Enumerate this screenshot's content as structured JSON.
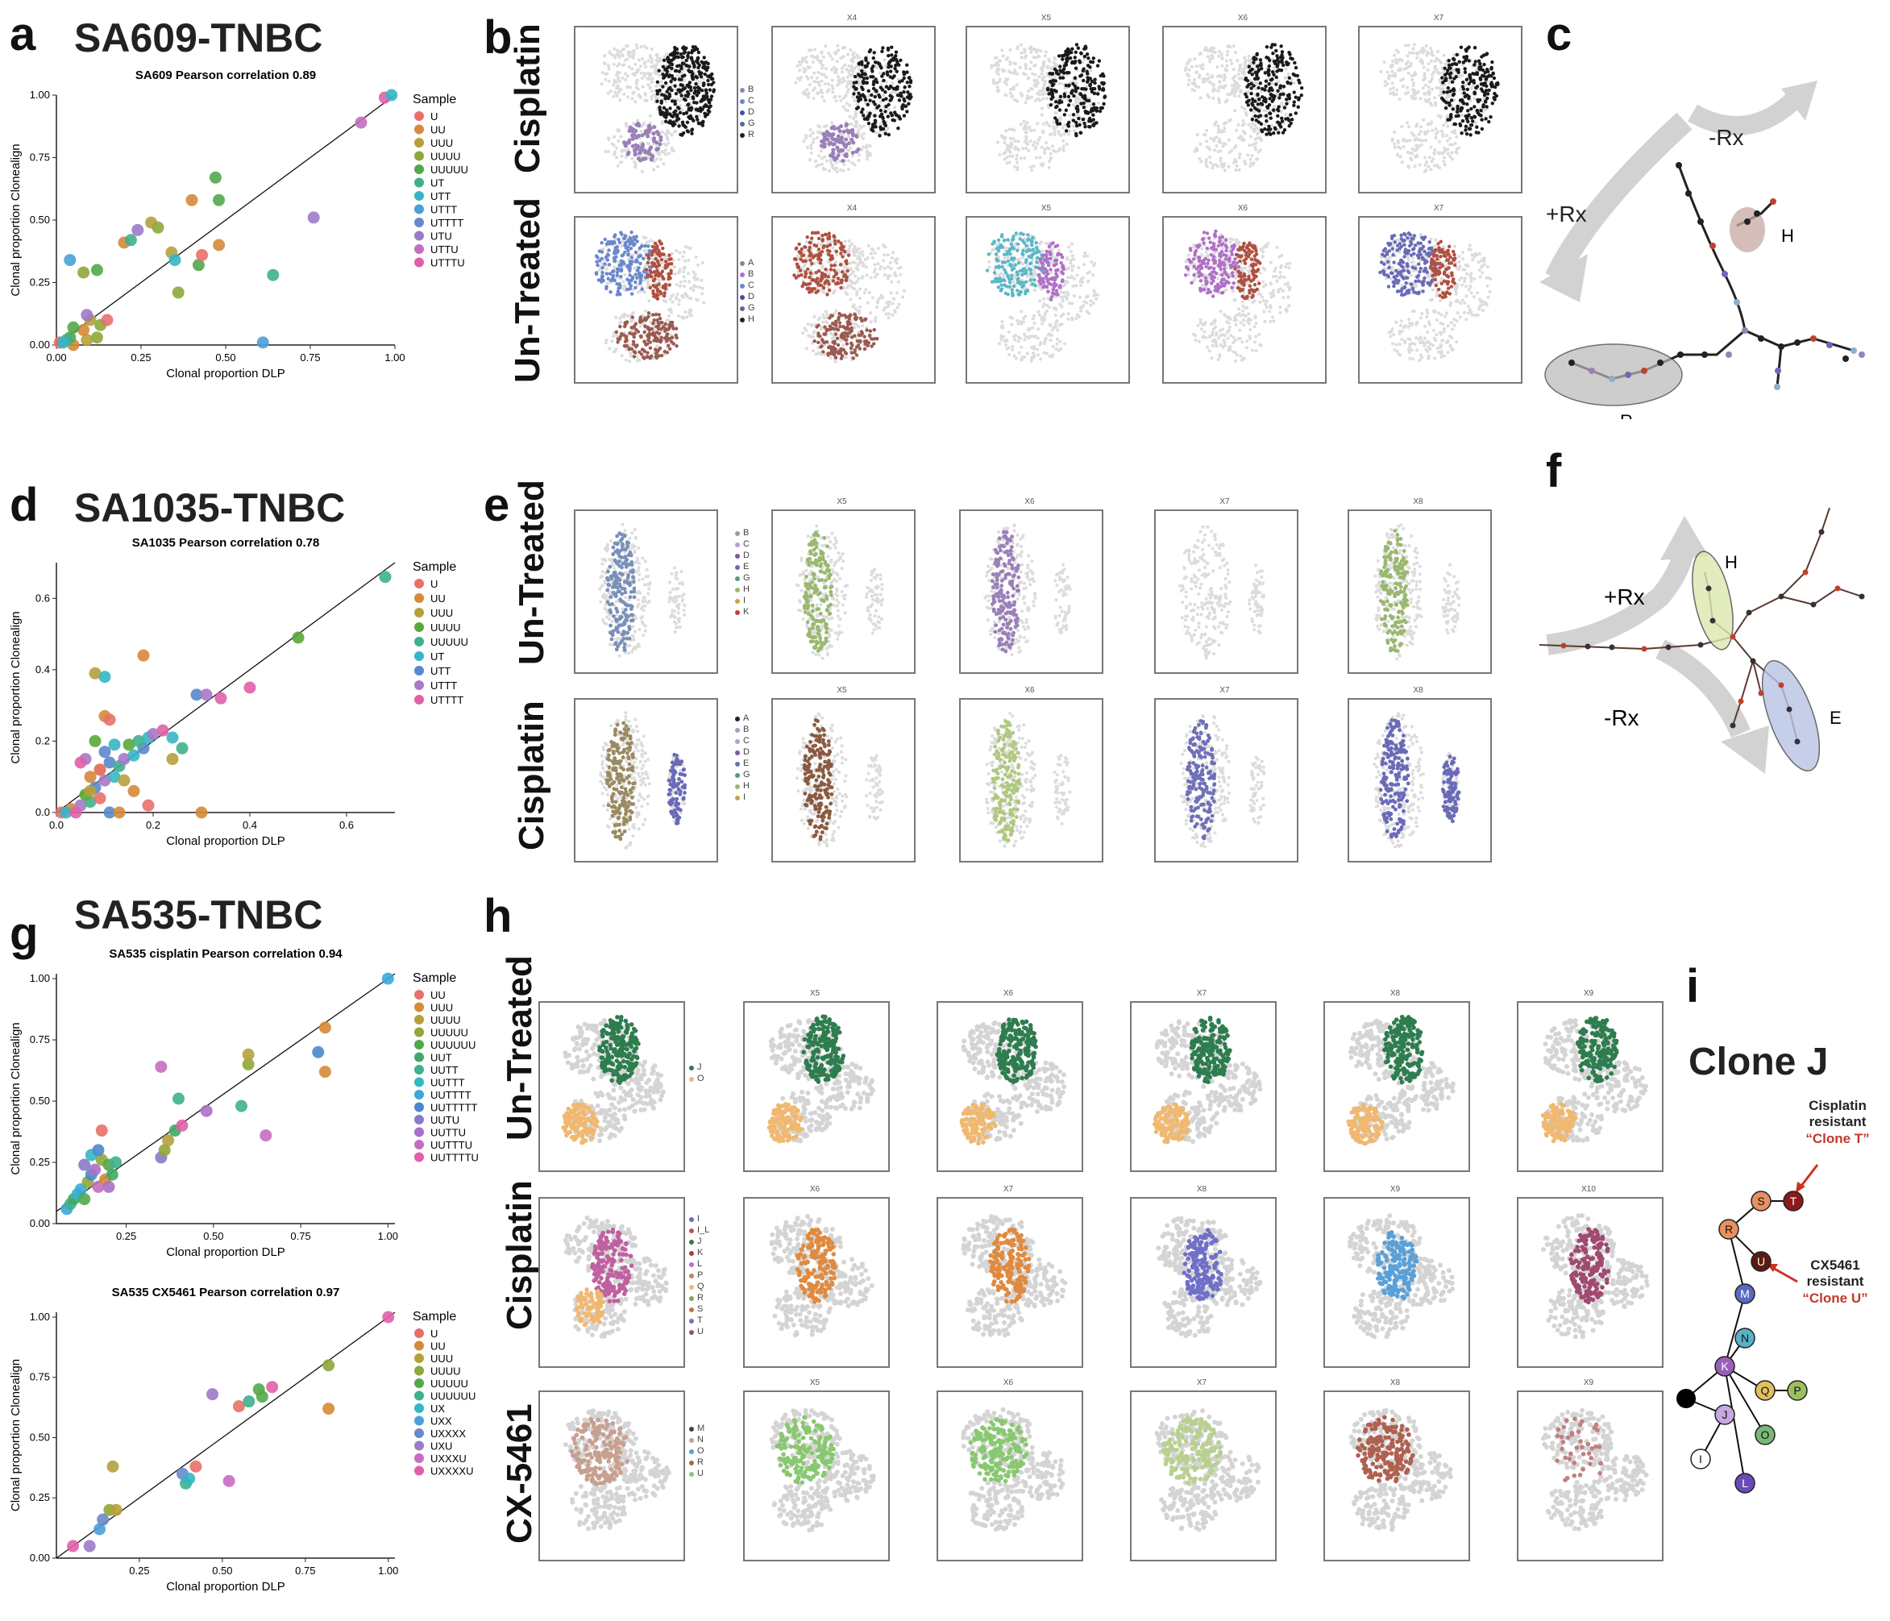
{
  "panels": {
    "a": {
      "letter": "a",
      "title": "SA609-TNBC",
      "chart_data": {
        "type": "scatter",
        "title": "SA609 Pearson correlation 0.89",
        "xlabel": "Clonal proportion DLP",
        "ylabel": "Clonal proportion Clonealign",
        "xlim": [
          0,
          1
        ],
        "ylim": [
          0,
          1
        ],
        "xticks": [
          "0.00",
          "0.25",
          "0.50",
          "0.75",
          "1.00"
        ],
        "yticks": [
          "0.00",
          "0.25",
          "0.50",
          "0.75",
          "1.00"
        ],
        "legend_title": "Sample",
        "legend": [
          "U",
          "UU",
          "UUU",
          "UUUU",
          "UUUUU",
          "UT",
          "UTT",
          "UTTT",
          "UTTTT",
          "UTU",
          "UTTU",
          "UTTTU"
        ],
        "colors": [
          "#e8706a",
          "#d68a3a",
          "#b6a03c",
          "#8ea83a",
          "#52a84a",
          "#3fb08c",
          "#35b6c4",
          "#4aa0d8",
          "#6a88cc",
          "#9d7ac8",
          "#c56dc2",
          "#e060a8"
        ],
        "points": [
          [
            0.01,
            0.01,
            0
          ],
          [
            0.05,
            0.0,
            1
          ],
          [
            0.09,
            0.02,
            2
          ],
          [
            0.12,
            0.03,
            3
          ],
          [
            0.04,
            0.03,
            4
          ],
          [
            0.03,
            0.02,
            5
          ],
          [
            0.02,
            0.01,
            6
          ],
          [
            0.08,
            0.06,
            1
          ],
          [
            0.1,
            0.1,
            2
          ],
          [
            0.13,
            0.08,
            3
          ],
          [
            0.05,
            0.07,
            4
          ],
          [
            0.15,
            0.1,
            0
          ],
          [
            0.09,
            0.12,
            9
          ],
          [
            0.04,
            0.34,
            7
          ],
          [
            0.08,
            0.29,
            3
          ],
          [
            0.12,
            0.3,
            4
          ],
          [
            0.2,
            0.41,
            1
          ],
          [
            0.24,
            0.46,
            9
          ],
          [
            0.28,
            0.49,
            2
          ],
          [
            0.3,
            0.47,
            3
          ],
          [
            0.22,
            0.42,
            5
          ],
          [
            0.34,
            0.37,
            2
          ],
          [
            0.35,
            0.34,
            6
          ],
          [
            0.36,
            0.21,
            3
          ],
          [
            0.42,
            0.32,
            4
          ],
          [
            0.43,
            0.36,
            0
          ],
          [
            0.48,
            0.4,
            1
          ],
          [
            0.4,
            0.58,
            1
          ],
          [
            0.48,
            0.58,
            4
          ],
          [
            0.47,
            0.67,
            4
          ],
          [
            0.64,
            0.28,
            5
          ],
          [
            0.61,
            0.01,
            7
          ],
          [
            0.76,
            0.51,
            9
          ],
          [
            0.9,
            0.89,
            10
          ],
          [
            0.97,
            0.99,
            11
          ],
          [
            0.99,
            1.0,
            6
          ]
        ]
      }
    },
    "b": {
      "letter": "b",
      "rows": [
        "Cisplatin",
        "Un-Treated"
      ],
      "cols": [
        "",
        "X4",
        "X5",
        "X6",
        "X7"
      ],
      "legend_cisplatin": [
        "B",
        "C",
        "D",
        "G",
        "R"
      ],
      "legend_untreated": [
        "A",
        "B",
        "C",
        "D",
        "G",
        "H"
      ]
    },
    "c": {
      "letter": "c",
      "plus_rx": "+Rx",
      "minus_rx": "-Rx",
      "label_h": "H",
      "label_r": "R"
    },
    "d": {
      "letter": "d",
      "title": "SA1035-TNBC",
      "chart_data": {
        "type": "scatter",
        "title": "SA1035 Pearson correlation 0.78",
        "xlabel": "Clonal proportion DLP",
        "ylabel": "Clonal proportion Clonealign",
        "xlim": [
          0,
          0.7
        ],
        "ylim": [
          0,
          0.7
        ],
        "xticks": [
          "0.0",
          "0.2",
          "0.4",
          "0.6"
        ],
        "yticks": [
          "0.0",
          "0.2",
          "0.4",
          "0.6"
        ],
        "legend_title": "Sample",
        "legend": [
          "U",
          "UU",
          "UUU",
          "UUUU",
          "UUUUU",
          "UT",
          "UTT",
          "UTTT",
          "UTTTT"
        ],
        "colors": [
          "#e8706a",
          "#d68a3a",
          "#b6a03c",
          "#5aa83a",
          "#3fb08c",
          "#35b6c4",
          "#5a88cc",
          "#a978c8",
          "#e060a8"
        ],
        "points": [
          [
            0.01,
            0.0,
            0
          ],
          [
            0.03,
            0.01,
            1
          ],
          [
            0.05,
            0.02,
            7
          ],
          [
            0.07,
            0.03,
            4
          ],
          [
            0.02,
            0.0,
            5
          ],
          [
            0.04,
            0.0,
            8
          ],
          [
            0.06,
            0.05,
            3
          ],
          [
            0.08,
            0.07,
            6
          ],
          [
            0.1,
            0.09,
            7
          ],
          [
            0.12,
            0.1,
            5
          ],
          [
            0.09,
            0.12,
            2
          ],
          [
            0.11,
            0.14,
            6
          ],
          [
            0.13,
            0.13,
            4
          ],
          [
            0.14,
            0.15,
            7
          ],
          [
            0.16,
            0.16,
            5
          ],
          [
            0.18,
            0.18,
            6
          ],
          [
            0.15,
            0.19,
            3
          ],
          [
            0.17,
            0.2,
            4
          ],
          [
            0.19,
            0.21,
            5
          ],
          [
            0.2,
            0.22,
            7
          ],
          [
            0.22,
            0.23,
            8
          ],
          [
            0.12,
            0.19,
            5
          ],
          [
            0.1,
            0.17,
            6
          ],
          [
            0.08,
            0.2,
            3
          ],
          [
            0.06,
            0.15,
            7
          ],
          [
            0.05,
            0.14,
            8
          ],
          [
            0.07,
            0.06,
            2
          ],
          [
            0.09,
            0.04,
            0
          ],
          [
            0.11,
            0.0,
            6
          ],
          [
            0.13,
            0.0,
            1
          ],
          [
            0.1,
            0.27,
            1
          ],
          [
            0.11,
            0.26,
            0
          ],
          [
            0.08,
            0.39,
            2
          ],
          [
            0.1,
            0.38,
            5
          ],
          [
            0.18,
            0.44,
            1
          ],
          [
            0.07,
            0.1,
            1
          ],
          [
            0.09,
            0.12,
            0
          ],
          [
            0.14,
            0.09,
            2
          ],
          [
            0.16,
            0.06,
            1
          ],
          [
            0.19,
            0.02,
            0
          ],
          [
            0.24,
            0.15,
            2
          ],
          [
            0.24,
            0.21,
            5
          ],
          [
            0.26,
            0.18,
            4
          ],
          [
            0.29,
            0.33,
            6
          ],
          [
            0.31,
            0.33,
            7
          ],
          [
            0.34,
            0.32,
            8
          ],
          [
            0.3,
            0.0,
            1
          ],
          [
            0.4,
            0.35,
            8
          ],
          [
            0.5,
            0.49,
            3
          ],
          [
            0.68,
            0.66,
            4
          ]
        ]
      }
    },
    "e": {
      "letter": "e",
      "rows": [
        "Un-Treated",
        "Cisplatin"
      ],
      "cols": [
        "",
        "X5",
        "X6",
        "X7",
        "X8"
      ],
      "legend_untreated": [
        "B",
        "C",
        "D",
        "E",
        "G",
        "H",
        "I",
        "K"
      ],
      "legend_cisplatin": [
        "A",
        "B",
        "C",
        "D",
        "E",
        "G",
        "H",
        "I"
      ]
    },
    "f": {
      "letter": "f",
      "plus_rx": "+Rx",
      "minus_rx": "-Rx",
      "label_h": "H",
      "label_e": "E"
    },
    "g": {
      "letter": "g",
      "title": "SA535-TNBC",
      "chart_top": {
        "type": "scatter",
        "title": "SA535 cisplatin Pearson correlation 0.94",
        "xlabel": "Clonal proportion DLP",
        "ylabel": "Clonal proportion Clonealign",
        "xlim": [
          0.05,
          1.02
        ],
        "ylim": [
          0,
          1.02
        ],
        "xticks": [
          "0.25",
          "0.50",
          "0.75",
          "1.00"
        ],
        "yticks": [
          "0.00",
          "0.25",
          "0.50",
          "0.75",
          "1.00"
        ],
        "legend_title": "Sample",
        "legend": [
          "UU",
          "UUU",
          "UUUU",
          "UUUUU",
          "UUUUUU",
          "UUT",
          "UUTT",
          "UUTTT",
          "UUTTTT",
          "UUTTTTT",
          "UUTU",
          "UUTTU",
          "UUTTTU",
          "UUTTTTU"
        ],
        "colors": [
          "#e8706a",
          "#d68a3a",
          "#b6a03c",
          "#8ea83a",
          "#52a84a",
          "#3fa866",
          "#3fb08c",
          "#35b6c4",
          "#3aa8dc",
          "#4a88cc",
          "#8a7ac8",
          "#a970c8",
          "#c56dc2",
          "#e060a8"
        ],
        "points": [
          [
            0.08,
            0.06,
            8
          ],
          [
            0.09,
            0.08,
            6
          ],
          [
            0.1,
            0.1,
            5
          ],
          [
            0.11,
            0.12,
            7
          ],
          [
            0.12,
            0.14,
            8
          ],
          [
            0.13,
            0.1,
            4
          ],
          [
            0.14,
            0.17,
            3
          ],
          [
            0.15,
            0.2,
            9
          ],
          [
            0.16,
            0.22,
            11
          ],
          [
            0.17,
            0.15,
            12
          ],
          [
            0.18,
            0.26,
            3
          ],
          [
            0.19,
            0.18,
            1
          ],
          [
            0.2,
            0.24,
            4
          ],
          [
            0.21,
            0.2,
            5
          ],
          [
            0.22,
            0.25,
            6
          ],
          [
            0.15,
            0.28,
            7
          ],
          [
            0.17,
            0.3,
            9
          ],
          [
            0.18,
            0.38,
            0
          ],
          [
            0.13,
            0.24,
            10
          ],
          [
            0.2,
            0.15,
            11
          ],
          [
            0.35,
            0.27,
            10
          ],
          [
            0.36,
            0.3,
            3
          ],
          [
            0.37,
            0.34,
            2
          ],
          [
            0.39,
            0.38,
            5
          ],
          [
            0.41,
            0.4,
            13
          ],
          [
            0.4,
            0.51,
            6
          ],
          [
            0.35,
            0.64,
            12
          ],
          [
            0.48,
            0.46,
            11
          ],
          [
            0.58,
            0.48,
            6
          ],
          [
            0.6,
            0.65,
            3
          ],
          [
            0.6,
            0.69,
            2
          ],
          [
            0.65,
            0.36,
            12
          ],
          [
            0.8,
            0.7,
            9
          ],
          [
            0.82,
            0.62,
            1
          ],
          [
            0.82,
            0.8,
            1
          ],
          [
            1.0,
            1.0,
            8
          ]
        ]
      },
      "chart_bottom": {
        "type": "scatter",
        "title": "SA535 CX5461 Pearson correlation 0.97",
        "xlabel": "Clonal proportion DLP",
        "ylabel": "Clonal proportion Clonealign",
        "xlim": [
          0,
          1.02
        ],
        "ylim": [
          0,
          1.02
        ],
        "xticks": [
          "0.25",
          "0.50",
          "0.75",
          "1.00"
        ],
        "yticks": [
          "0.00",
          "0.25",
          "0.50",
          "0.75",
          "1.00"
        ],
        "legend_title": "Sample",
        "legend": [
          "U",
          "UU",
          "UUU",
          "UUUU",
          "UUUUU",
          "UUUUUU",
          "UX",
          "UXX",
          "UXXXX",
          "UXU",
          "UXXXU",
          "UXXXXU"
        ],
        "colors": [
          "#e8706a",
          "#d68a3a",
          "#b6a03c",
          "#8ea83a",
          "#52a84a",
          "#3fb08c",
          "#35b6c4",
          "#4aa0d8",
          "#6a88cc",
          "#9d7ac8",
          "#c56dc2",
          "#e060a8"
        ],
        "points": [
          [
            0.05,
            0.05,
            11
          ],
          [
            0.1,
            0.05,
            9
          ],
          [
            0.13,
            0.12,
            7
          ],
          [
            0.14,
            0.16,
            8
          ],
          [
            0.16,
            0.2,
            3
          ],
          [
            0.18,
            0.2,
            2
          ],
          [
            0.17,
            0.38,
            2
          ],
          [
            0.38,
            0.35,
            8
          ],
          [
            0.39,
            0.31,
            5
          ],
          [
            0.4,
            0.33,
            6
          ],
          [
            0.42,
            0.38,
            0
          ],
          [
            0.47,
            0.68,
            9
          ],
          [
            0.52,
            0.32,
            10
          ],
          [
            0.55,
            0.63,
            0
          ],
          [
            0.58,
            0.65,
            5
          ],
          [
            0.61,
            0.7,
            4
          ],
          [
            0.62,
            0.67,
            4
          ],
          [
            0.65,
            0.71,
            11
          ],
          [
            0.82,
            0.8,
            3
          ],
          [
            0.82,
            0.62,
            1
          ],
          [
            1.0,
            1.0,
            11
          ]
        ]
      }
    },
    "h": {
      "letter": "h",
      "rows": [
        "Un-Treated",
        "Cisplatin",
        "CX-5461"
      ],
      "cols_untreated": [
        "",
        "X5",
        "X6",
        "X7",
        "X8",
        "X9"
      ],
      "cols_cisplatin": [
        "",
        "X6",
        "X7",
        "X8",
        "X9",
        "X10"
      ],
      "cols_cx": [
        "",
        "X5",
        "X6",
        "X7",
        "X8",
        "X9"
      ],
      "legend_untreated": [
        "J",
        "O"
      ],
      "legend_cisplatin": [
        "I",
        "I_L",
        "J",
        "K",
        "L",
        "P",
        "Q",
        "R",
        "S",
        "T",
        "U"
      ],
      "legend_cx": [
        "M",
        "N",
        "O",
        "R",
        "U"
      ]
    },
    "i": {
      "letter": "i",
      "clone_title": "Clone J",
      "cisplatin_line1": "Cisplatin",
      "cisplatin_line2": "resistant",
      "cisplatin_quote": "“Clone T”",
      "cx_line1": "CX5461",
      "cx_line2": "resistant",
      "cx_quote": "“Clone U”",
      "nodes": [
        "S",
        "T",
        "R",
        "U",
        "M",
        "N",
        "K",
        "Q",
        "P",
        "J",
        "O",
        "I",
        "L"
      ]
    }
  }
}
